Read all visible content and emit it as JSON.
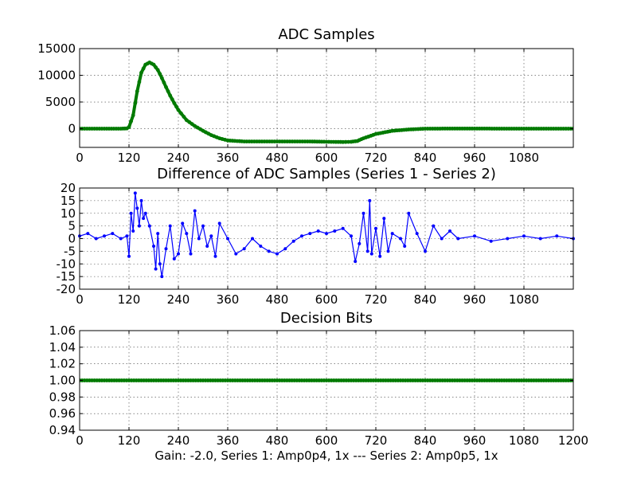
{
  "figure": {
    "footer": "Gain: -2.0, Series 1: Amp0p4, 1x --- Series 2: Amp0p5, 1x"
  },
  "colors": {
    "green": "#007a00",
    "blue": "#0000ff"
  },
  "chart_data": [
    {
      "type": "line",
      "title": "ADC Samples",
      "xlim": [
        0,
        1200
      ],
      "ylim": [
        -3500,
        15000
      ],
      "xticks": [
        0,
        120,
        240,
        360,
        480,
        600,
        720,
        840,
        960,
        1080
      ],
      "yticks": [
        0,
        5000,
        10000,
        15000
      ],
      "grid": true,
      "series": [
        {
          "name": "ADC samples",
          "color": "#007a00",
          "x": [
            0,
            60,
            100,
            115,
            120,
            130,
            140,
            150,
            160,
            170,
            180,
            190,
            200,
            210,
            220,
            230,
            240,
            260,
            280,
            300,
            320,
            340,
            360,
            400,
            480,
            560,
            600,
            640,
            660,
            675,
            690,
            720,
            760,
            800,
            840,
            900,
            960,
            1080,
            1200
          ],
          "y": [
            0,
            0,
            0,
            50,
            300,
            2500,
            7000,
            10500,
            12000,
            12400,
            12000,
            11000,
            9500,
            7800,
            6200,
            4800,
            3500,
            1600,
            500,
            -400,
            -1200,
            -1800,
            -2200,
            -2400,
            -2400,
            -2400,
            -2450,
            -2500,
            -2450,
            -2300,
            -1800,
            -1000,
            -400,
            -150,
            0,
            20,
            20,
            0,
            0
          ]
        }
      ]
    },
    {
      "type": "line",
      "title": "Difference of ADC Samples (Series 1 - Series 2)",
      "xlim": [
        0,
        1200
      ],
      "ylim": [
        -20,
        20
      ],
      "xticks": [
        0,
        120,
        240,
        360,
        480,
        600,
        720,
        840,
        960,
        1080
      ],
      "yticks": [
        -20,
        -15,
        -10,
        -5,
        0,
        5,
        10,
        15,
        20
      ],
      "grid": true,
      "markers": true,
      "series": [
        {
          "name": "Series 1 - Series 2",
          "color": "#0000ff",
          "x": [
            0,
            20,
            40,
            60,
            80,
            100,
            115,
            120,
            125,
            130,
            135,
            140,
            145,
            150,
            155,
            160,
            170,
            180,
            185,
            190,
            195,
            200,
            210,
            220,
            230,
            240,
            250,
            260,
            270,
            280,
            290,
            300,
            310,
            320,
            330,
            340,
            360,
            380,
            400,
            420,
            440,
            460,
            480,
            500,
            520,
            540,
            560,
            580,
            600,
            620,
            640,
            660,
            670,
            680,
            690,
            700,
            705,
            710,
            720,
            730,
            740,
            750,
            760,
            780,
            790,
            800,
            820,
            840,
            860,
            880,
            900,
            920,
            960,
            1000,
            1040,
            1080,
            1120,
            1160,
            1200
          ],
          "y": [
            1,
            2,
            0,
            1,
            2,
            0,
            1,
            -7,
            10,
            3,
            18,
            12,
            5,
            15,
            8,
            10,
            5,
            -3,
            -12,
            2,
            -10,
            -15,
            -4,
            5,
            -8,
            -6,
            6,
            2,
            -6,
            11,
            0,
            5,
            -3,
            1,
            -7,
            6,
            0,
            -6,
            -4,
            0,
            -3,
            -5,
            -6,
            -4,
            -1,
            1,
            2,
            3,
            2,
            3,
            4,
            1,
            -9,
            -2,
            10,
            -5,
            15,
            -6,
            4,
            -7,
            8,
            -5,
            2,
            0,
            -3,
            10,
            2,
            -5,
            5,
            0,
            3,
            0,
            1,
            -1,
            0,
            1,
            0,
            1,
            0
          ]
        }
      ]
    },
    {
      "type": "line",
      "title": "Decision Bits",
      "xlim": [
        0,
        1200
      ],
      "ylim": [
        0.94,
        1.06
      ],
      "xticks": [
        0,
        120,
        240,
        360,
        480,
        600,
        720,
        840,
        960,
        1080,
        1200
      ],
      "yticks": [
        0.94,
        0.96,
        0.98,
        1.0,
        1.02,
        1.04,
        1.06
      ],
      "grid": true,
      "series": [
        {
          "name": "Decision bits",
          "color": "#007a00",
          "x": [
            0,
            1200
          ],
          "y": [
            1.0,
            1.0
          ]
        }
      ]
    }
  ]
}
